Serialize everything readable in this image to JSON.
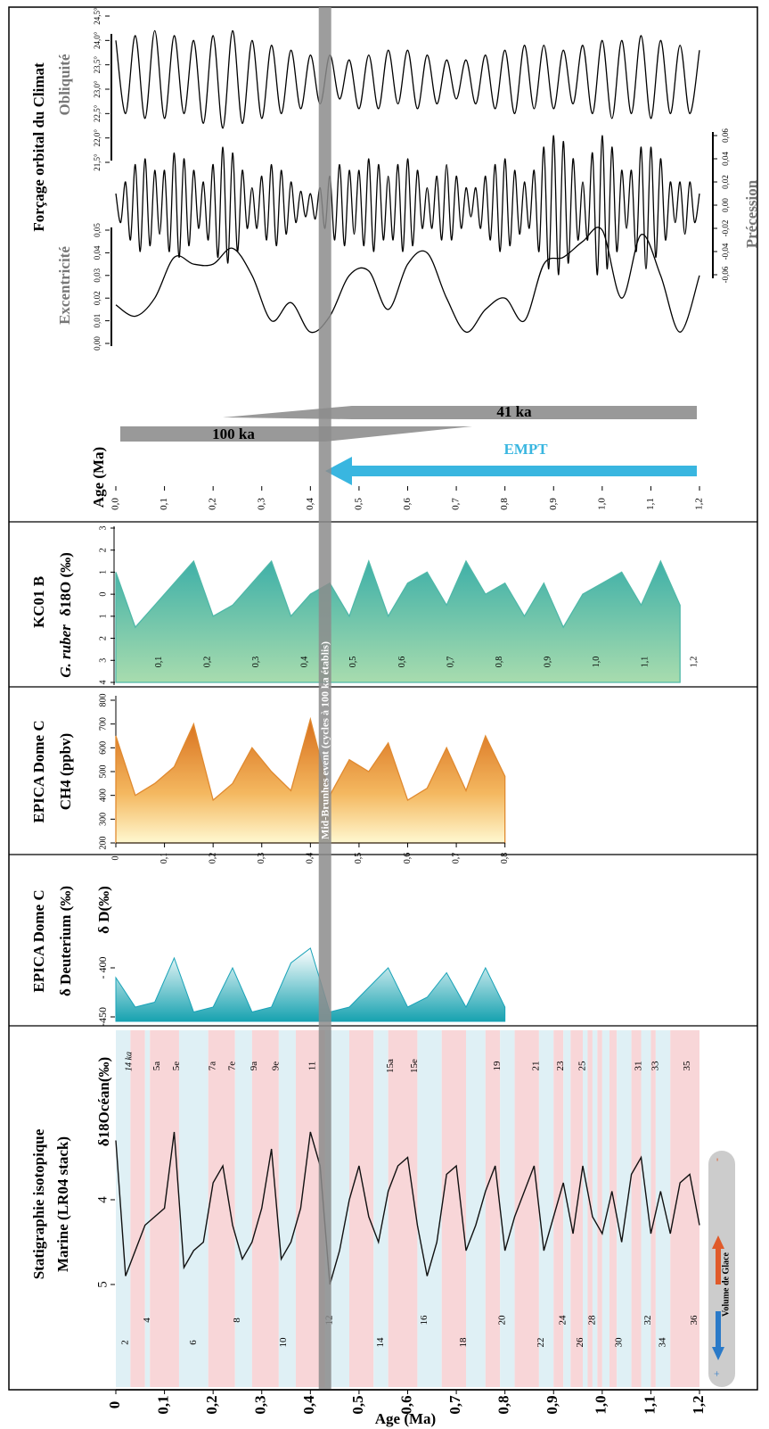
{
  "chart_data": {
    "type": "stacked-panels",
    "axis_title": "Age (Ma)",
    "age_ticks": [
      0,
      {
        "value": 0.1,
        "label": "0,1"
      },
      {
        "value": 0.2,
        "label": "0,2"
      },
      {
        "value": 0.3,
        "label": "0,3"
      },
      {
        "value": 0.4,
        "label": "0,4"
      },
      {
        "value": 0.5,
        "label": "0,5"
      },
      {
        "value": 0.6,
        "label": "0,6"
      },
      {
        "value": 0.7,
        "label": "0,7"
      },
      {
        "value": 0.8,
        "label": "0,8"
      },
      {
        "value": 0.9,
        "label": "0,9"
      },
      {
        "value": 1.0,
        "label": "1,0"
      },
      {
        "value": 1.1,
        "label": "1,1"
      },
      {
        "value": 1.2,
        "label": "1,2"
      }
    ],
    "xlim": [
      0,
      1.2
    ],
    "mid_brunhes": {
      "label": "Mid-Brunhes event (cycles à 100 ka établis)",
      "age": 0.43
    },
    "orbital": {
      "title": "Forçage orbital du Climat",
      "obliquity": {
        "label": "Obliquité",
        "yticks": [
          {
            "value": 21.5,
            "label": "21,5°"
          },
          {
            "value": 22.0,
            "label": "22,0°"
          },
          {
            "value": 22.5,
            "label": "22,5°"
          },
          {
            "value": 23.0,
            "label": "23,0°"
          },
          {
            "value": 23.5,
            "label": "23,5°"
          },
          {
            "value": 24.0,
            "label": "24,0°"
          },
          {
            "value": 24.5,
            "label": "24,5°"
          }
        ],
        "x": [
          0,
          0.02,
          0.04,
          0.06,
          0.08,
          0.1,
          0.12,
          0.14,
          0.16,
          0.18,
          0.2,
          0.22,
          0.24,
          0.26,
          0.28,
          0.3,
          0.32,
          0.34,
          0.36,
          0.38,
          0.4,
          0.42,
          0.44,
          0.46,
          0.48,
          0.5,
          0.52,
          0.54,
          0.56,
          0.58,
          0.6,
          0.62,
          0.64,
          0.66,
          0.68,
          0.7,
          0.72,
          0.74,
          0.76,
          0.78,
          0.8,
          0.82,
          0.84,
          0.86,
          0.88,
          0.9,
          0.92,
          0.94,
          0.96,
          0.98,
          1.0,
          1.02,
          1.04,
          1.06,
          1.08,
          1.1,
          1.12,
          1.14,
          1.16,
          1.18,
          1.2
        ],
        "values": [
          24.0,
          22.5,
          24.1,
          22.4,
          24.2,
          22.4,
          24.1,
          22.5,
          24.0,
          22.3,
          24.1,
          22.2,
          24.2,
          22.3,
          24.0,
          22.4,
          23.9,
          22.5,
          23.8,
          22.6,
          23.7,
          22.7,
          23.7,
          22.8,
          23.6,
          22.6,
          23.7,
          22.6,
          23.8,
          22.7,
          23.8,
          22.6,
          23.7,
          22.7,
          23.6,
          22.8,
          23.6,
          22.7,
          23.7,
          22.6,
          23.8,
          22.5,
          23.9,
          22.6,
          23.9,
          22.6,
          23.8,
          22.7,
          23.9,
          22.5,
          24.0,
          22.4,
          24.0,
          22.5,
          24.1,
          22.4,
          24.0,
          22.5,
          23.9,
          22.5,
          23.8
        ]
      },
      "precession": {
        "label": "Précession",
        "yticks": [
          {
            "value": -0.06,
            "label": "-0,06"
          },
          {
            "value": -0.04,
            "label": "-0,04"
          },
          {
            "value": -0.02,
            "label": "-0,02"
          },
          {
            "value": 0,
            "label": "0,00"
          },
          {
            "value": 0.02,
            "label": "0,02"
          },
          {
            "value": 0.04,
            "label": "0,04"
          },
          {
            "value": 0.06,
            "label": "0,06"
          }
        ],
        "x": [
          0,
          0.01,
          0.02,
          0.03,
          0.04,
          0.05,
          0.06,
          0.07,
          0.08,
          0.09,
          0.1,
          0.11,
          0.12,
          0.13,
          0.14,
          0.15,
          0.16,
          0.17,
          0.18,
          0.19,
          0.2,
          0.21,
          0.22,
          0.23,
          0.24,
          0.25,
          0.26,
          0.27,
          0.28,
          0.29,
          0.3,
          0.31,
          0.32,
          0.33,
          0.34,
          0.35,
          0.36,
          0.37,
          0.38,
          0.39,
          0.4,
          0.41,
          0.42,
          0.43,
          0.44,
          0.45,
          0.46,
          0.47,
          0.48,
          0.49,
          0.5,
          0.51,
          0.52,
          0.53,
          0.54,
          0.55,
          0.56,
          0.57,
          0.58,
          0.59,
          0.6,
          0.61,
          0.62,
          0.63,
          0.64,
          0.65,
          0.66,
          0.67,
          0.68,
          0.69,
          0.7,
          0.71,
          0.72,
          0.73,
          0.74,
          0.75,
          0.76,
          0.77,
          0.78,
          0.79,
          0.8,
          0.81,
          0.82,
          0.83,
          0.84,
          0.85,
          0.86,
          0.87,
          0.88,
          0.89,
          0.9,
          0.91,
          0.92,
          0.93,
          0.94,
          0.95,
          0.96,
          0.97,
          0.98,
          0.99,
          1.0,
          1.01,
          1.02,
          1.03,
          1.04,
          1.05,
          1.06,
          1.07,
          1.08,
          1.09,
          1.1,
          1.11,
          1.12,
          1.13,
          1.14,
          1.15,
          1.16,
          1.17,
          1.18,
          1.19,
          1.2
        ],
        "values": [
          0.01,
          -0.015,
          0.02,
          -0.03,
          0.035,
          -0.04,
          0.04,
          -0.035,
          0.03,
          -0.025,
          0.03,
          -0.04,
          0.045,
          -0.045,
          0.04,
          -0.035,
          0.03,
          -0.02,
          0.02,
          -0.03,
          0.035,
          -0.045,
          0.05,
          -0.05,
          0.045,
          -0.04,
          0.03,
          -0.02,
          0.015,
          -0.02,
          0.025,
          -0.03,
          0.035,
          -0.035,
          0.03,
          -0.025,
          0.02,
          -0.015,
          0.012,
          -0.01,
          0.01,
          -0.012,
          0.015,
          -0.02,
          0.025,
          -0.03,
          0.035,
          -0.035,
          0.03,
          -0.025,
          0.03,
          -0.035,
          0.04,
          -0.04,
          0.035,
          -0.03,
          0.025,
          -0.03,
          0.035,
          -0.04,
          0.04,
          -0.035,
          0.03,
          -0.02,
          0.015,
          -0.02,
          0.025,
          -0.03,
          0.035,
          -0.03,
          0.025,
          -0.02,
          0.015,
          -0.01,
          0.015,
          -0.02,
          0.025,
          -0.03,
          0.035,
          -0.04,
          0.04,
          -0.035,
          0.03,
          -0.025,
          0.02,
          -0.02,
          0.03,
          -0.04,
          0.05,
          -0.055,
          0.06,
          -0.06,
          0.055,
          -0.05,
          0.04,
          -0.03,
          0.02,
          -0.03,
          0.045,
          -0.06,
          0.06,
          -0.055,
          0.05,
          -0.04,
          0.03,
          -0.02,
          0.03,
          -0.04,
          0.05,
          -0.055,
          0.05,
          -0.045,
          0.04,
          -0.03,
          0.02,
          -0.015,
          0.02,
          -0.025,
          0.02,
          -0.015,
          0.01
        ]
      },
      "eccentricity": {
        "label": "Excentricité",
        "yticks": [
          {
            "value": 0,
            "label": "0,00"
          },
          {
            "value": 0.01,
            "label": "0,01"
          },
          {
            "value": 0.02,
            "label": "0,02"
          },
          {
            "value": 0.03,
            "label": "0,03"
          },
          {
            "value": 0.04,
            "label": "0,04"
          },
          {
            "value": 0.05,
            "label": "0,05"
          }
        ],
        "x": [
          0,
          0.04,
          0.08,
          0.12,
          0.16,
          0.2,
          0.24,
          0.28,
          0.32,
          0.36,
          0.4,
          0.44,
          0.48,
          0.52,
          0.56,
          0.6,
          0.64,
          0.68,
          0.72,
          0.76,
          0.8,
          0.84,
          0.88,
          0.92,
          0.96,
          1.0,
          1.04,
          1.08,
          1.12,
          1.16,
          1.2
        ],
        "values": [
          0.017,
          0.012,
          0.02,
          0.038,
          0.035,
          0.035,
          0.042,
          0.03,
          0.01,
          0.018,
          0.005,
          0.012,
          0.03,
          0.032,
          0.015,
          0.035,
          0.04,
          0.02,
          0.005,
          0.015,
          0.02,
          0.01,
          0.035,
          0.038,
          0.045,
          0.05,
          0.02,
          0.048,
          0.03,
          0.005,
          0.03
        ]
      }
    },
    "transition": {
      "axis_title": "Age (Ma)",
      "xticks": [
        {
          "value": 0,
          "label": "0,0"
        },
        {
          "value": 0.1,
          "label": "0,1"
        },
        {
          "value": 0.2,
          "label": "0,2"
        },
        {
          "value": 0.3,
          "label": "0,3"
        },
        {
          "value": 0.4,
          "label": "0,4"
        },
        {
          "value": 0.5,
          "label": "0,5"
        },
        {
          "value": 0.6,
          "label": "0,6"
        },
        {
          "value": 0.7,
          "label": "0,7"
        },
        {
          "value": 0.8,
          "label": "0,8"
        },
        {
          "value": 0.9,
          "label": "0,9"
        },
        {
          "value": 1.0,
          "label": "1,0"
        },
        {
          "value": 1.1,
          "label": "1,1"
        },
        {
          "value": 1.2,
          "label": "1,2"
        }
      ],
      "cycles_100": "100 ka",
      "cycles_41": "41 ka",
      "empt": "EMPT"
    },
    "kc01b": {
      "title": "KC01 B",
      "ylabel": "δ18O (‰)",
      "species": "G. ruber",
      "color": "#4fb8a8",
      "yticks": [
        {
          "value": -3,
          "label": "3"
        },
        {
          "value": -2,
          "label": "2"
        },
        {
          "value": -1,
          "label": "1"
        },
        0,
        1,
        2,
        3,
        4
      ],
      "x": [
        0,
        0.04,
        0.08,
        0.12,
        0.16,
        0.2,
        0.24,
        0.28,
        0.32,
        0.36,
        0.4,
        0.44,
        0.48,
        0.52,
        0.56,
        0.6,
        0.64,
        0.68,
        0.72,
        0.76,
        0.8,
        0.84,
        0.88,
        0.92,
        0.96,
        1.0,
        1.04,
        1.08,
        1.12,
        1.16
      ],
      "values": [
        -1,
        1.5,
        0.5,
        -0.5,
        -1.5,
        1,
        0.5,
        -0.5,
        -1.5,
        1,
        0,
        -0.5,
        1,
        -1.5,
        1,
        -0.5,
        -1,
        0.5,
        -1.5,
        0,
        -0.5,
        1,
        -0.5,
        1.5,
        0,
        -0.5,
        -1,
        0.5,
        -1.5,
        0.5
      ]
    },
    "ch4": {
      "title": "EPICA Dome C",
      "ylabel": "CH4 (ppbv)",
      "color": "#e08a30",
      "yticks": [
        200,
        300,
        400,
        500,
        600,
        700,
        800
      ],
      "x": [
        0,
        0.04,
        0.08,
        0.12,
        0.16,
        0.2,
        0.24,
        0.28,
        0.32,
        0.36,
        0.4,
        0.44,
        0.48,
        0.52,
        0.56,
        0.6,
        0.64,
        0.68,
        0.72,
        0.76,
        0.8
      ],
      "values": [
        650,
        400,
        450,
        520,
        700,
        380,
        450,
        600,
        500,
        420,
        720,
        400,
        550,
        500,
        620,
        380,
        430,
        600,
        420,
        650,
        480
      ]
    },
    "deuterium": {
      "title": "EPICA Dome C",
      "ylabel": "δ Deuterium (‰)",
      "axis_label": "δ D(‰)",
      "color": "#1aa3b8",
      "yticks": [
        {
          "value": -400,
          "label": "- 400"
        },
        {
          "value": -450,
          "label": "-450"
        }
      ],
      "x": [
        0,
        0.04,
        0.08,
        0.12,
        0.16,
        0.2,
        0.24,
        0.28,
        0.32,
        0.36,
        0.4,
        0.44,
        0.48,
        0.52,
        0.56,
        0.6,
        0.64,
        0.68,
        0.72,
        0.76,
        0.8
      ],
      "values": [
        -410,
        -440,
        -435,
        -390,
        -445,
        -440,
        -400,
        -445,
        -440,
        -395,
        -380,
        -445,
        -440,
        -420,
        -400,
        -440,
        -430,
        -405,
        -440,
        -400,
        -440
      ]
    },
    "lr04": {
      "title": "Statigraphie isotopique",
      "title2": "Marine (LR04 stack)",
      "ylabel": "δ18Océan(‰)",
      "yticks": [
        4,
        5
      ],
      "x": [
        0,
        0.02,
        0.04,
        0.06,
        0.08,
        0.1,
        0.12,
        0.14,
        0.16,
        0.18,
        0.2,
        0.22,
        0.24,
        0.26,
        0.28,
        0.3,
        0.32,
        0.34,
        0.36,
        0.38,
        0.4,
        0.42,
        0.44,
        0.46,
        0.48,
        0.5,
        0.52,
        0.54,
        0.56,
        0.58,
        0.6,
        0.62,
        0.64,
        0.66,
        0.68,
        0.7,
        0.72,
        0.74,
        0.76,
        0.78,
        0.8,
        0.82,
        0.84,
        0.86,
        0.88,
        0.9,
        0.92,
        0.94,
        0.96,
        0.98,
        1.0,
        1.02,
        1.04,
        1.06,
        1.08,
        1.1,
        1.12,
        1.14,
        1.16,
        1.18,
        1.2
      ],
      "values": [
        3.3,
        4.9,
        4.6,
        4.3,
        4.2,
        4.1,
        3.2,
        4.8,
        4.6,
        4.5,
        3.8,
        3.6,
        4.3,
        4.7,
        4.5,
        4.1,
        3.4,
        4.7,
        4.5,
        4.1,
        3.2,
        3.6,
        5.0,
        4.6,
        4.0,
        3.6,
        4.2,
        4.5,
        3.9,
        3.6,
        3.5,
        4.3,
        4.9,
        4.5,
        3.7,
        3.6,
        4.6,
        4.3,
        3.9,
        3.6,
        4.6,
        4.2,
        3.9,
        3.6,
        4.6,
        4.2,
        3.8,
        4.4,
        3.6,
        4.2,
        4.4,
        3.9,
        4.5,
        3.7,
        3.5,
        4.4,
        3.9,
        4.4,
        3.8,
        3.7,
        4.3
      ],
      "interglacial_bands": [
        [
          0.03,
          0.06
        ],
        [
          0.07,
          0.13
        ],
        [
          0.19,
          0.245
        ],
        [
          0.28,
          0.335
        ],
        [
          0.37,
          0.43
        ],
        [
          0.48,
          0.53
        ],
        [
          0.56,
          0.62
        ],
        [
          0.67,
          0.72
        ],
        [
          0.76,
          0.79
        ],
        [
          0.82,
          0.87
        ],
        [
          0.9,
          0.92
        ],
        [
          0.935,
          0.96
        ],
        [
          0.97,
          0.98
        ],
        [
          0.99,
          1.0
        ],
        [
          1.015,
          1.03
        ],
        [
          1.06,
          1.08
        ],
        [
          1.1,
          1.11
        ],
        [
          1.14,
          1.2
        ]
      ],
      "holocene_label": "14 ka",
      "interglacial_stages": [
        {
          "label": "5a",
          "age": 0.085
        },
        {
          "label": "5e",
          "age": 0.125
        },
        {
          "label": "7a",
          "age": 0.2
        },
        {
          "label": "7e",
          "age": 0.24
        },
        {
          "label": "9a",
          "age": 0.285
        },
        {
          "label": "9e",
          "age": 0.33
        },
        {
          "label": "11",
          "age": 0.405
        },
        {
          "label": "15a",
          "age": 0.565
        },
        {
          "label": "15e",
          "age": 0.615
        },
        {
          "label": "19",
          "age": 0.785
        },
        {
          "label": "21",
          "age": 0.865
        },
        {
          "label": "23",
          "age": 0.915
        },
        {
          "label": "25",
          "age": 0.96
        },
        {
          "label": "31",
          "age": 1.075
        },
        {
          "label": "33",
          "age": 1.11
        },
        {
          "label": "35",
          "age": 1.175
        }
      ],
      "glacial_stages": [
        {
          "label": "2",
          "age": 0.02
        },
        {
          "label": "4",
          "age": 0.065
        },
        {
          "label": "6",
          "age": 0.16
        },
        {
          "label": "8",
          "age": 0.25
        },
        {
          "label": "10",
          "age": 0.345
        },
        {
          "label": "12",
          "age": 0.44
        },
        {
          "label": "14",
          "age": 0.545
        },
        {
          "label": "16",
          "age": 0.635
        },
        {
          "label": "18",
          "age": 0.715
        },
        {
          "label": "20",
          "age": 0.795
        },
        {
          "label": "22",
          "age": 0.875
        },
        {
          "label": "24",
          "age": 0.92
        },
        {
          "label": "26",
          "age": 0.955
        },
        {
          "label": "28",
          "age": 0.98
        },
        {
          "label": "30",
          "age": 1.035
        },
        {
          "label": "32",
          "age": 1.095
        },
        {
          "label": "34",
          "age": 1.125
        },
        {
          "label": "36",
          "age": 1.19
        }
      ],
      "ice_volume": {
        "label": "Volume de Glace",
        "plus": "+",
        "minus": "-"
      }
    }
  }
}
